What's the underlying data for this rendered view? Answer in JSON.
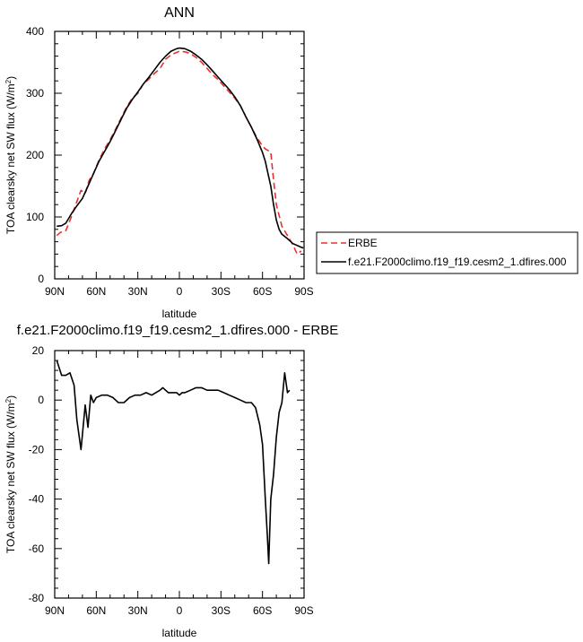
{
  "chart_data": [
    {
      "type": "line",
      "title": "ANN",
      "xlabel": "latitude",
      "ylabel_main": "TOA clearsky net SW flux (W/m",
      "ylabel_sup": "2",
      "ylabel_end": ")",
      "xlim": [
        90,
        -90
      ],
      "ylim": [
        0,
        400
      ],
      "x_ticks": [
        {
          "v": 90,
          "label": "90N"
        },
        {
          "v": 60,
          "label": "60N"
        },
        {
          "v": 30,
          "label": "30N"
        },
        {
          "v": 0,
          "label": "0"
        },
        {
          "v": -30,
          "label": "30S"
        },
        {
          "v": -60,
          "label": "60S"
        },
        {
          "v": -90,
          "label": "90S"
        }
      ],
      "y_ticks": [
        {
          "v": 0,
          "label": "0"
        },
        {
          "v": 100,
          "label": "100"
        },
        {
          "v": 200,
          "label": "200"
        },
        {
          "v": 300,
          "label": "300"
        },
        {
          "v": 400,
          "label": "400"
        }
      ],
      "legend": {
        "placement": "right",
        "entries": [
          "ERBE",
          "f.e21.F2000climo.f19_f19.cesm2_1.dfires.000"
        ]
      },
      "series": [
        {
          "name": "ERBE",
          "color": "#e8302e",
          "dash": true,
          "points": [
            [
              88.5,
              70
            ],
            [
              86,
              75
            ],
            [
              82,
              78
            ],
            [
              78,
              100
            ],
            [
              74,
              125
            ],
            [
              71,
              143
            ],
            [
              68,
              138
            ],
            [
              65,
              160
            ],
            [
              62,
              170
            ],
            [
              58,
              192
            ],
            [
              54,
              210
            ],
            [
              50,
              225
            ],
            [
              46,
              242
            ],
            [
              42,
              260
            ],
            [
              38,
              278
            ],
            [
              34,
              292
            ],
            [
              30,
              300
            ],
            [
              26,
              315
            ],
            [
              22,
              323
            ],
            [
              18,
              332
            ],
            [
              14,
              340
            ],
            [
              10,
              355
            ],
            [
              6,
              362
            ],
            [
              2,
              366
            ],
            [
              0,
              368
            ],
            [
              -4,
              367
            ],
            [
              -8,
              364
            ],
            [
              -12,
              358
            ],
            [
              -16,
              350
            ],
            [
              -20,
              340
            ],
            [
              -24,
              330
            ],
            [
              -28,
              322
            ],
            [
              -32,
              312
            ],
            [
              -36,
              302
            ],
            [
              -40,
              292
            ],
            [
              -44,
              280
            ],
            [
              -48,
              262
            ],
            [
              -52,
              245
            ],
            [
              -56,
              228
            ],
            [
              -60,
              215
            ],
            [
              -62,
              210
            ],
            [
              -66,
              205
            ],
            [
              -68,
              160
            ],
            [
              -70,
              120
            ],
            [
              -74,
              85
            ],
            [
              -78,
              70
            ],
            [
              -82,
              55
            ],
            [
              -85,
              40
            ],
            [
              -88,
              45
            ]
          ]
        },
        {
          "name": "f.e21.F2000climo.f19_f19.cesm2_1.dfires.000",
          "color": "#000000",
          "dash": false,
          "points": [
            [
              88.5,
              85
            ],
            [
              85,
              86
            ],
            [
              82,
              90
            ],
            [
              78,
              105
            ],
            [
              74,
              118
            ],
            [
              70,
              130
            ],
            [
              66,
              150
            ],
            [
              62,
              170
            ],
            [
              58,
              190
            ],
            [
              54,
              206
            ],
            [
              50,
              222
            ],
            [
              46,
              240
            ],
            [
              42,
              258
            ],
            [
              38,
              276
            ],
            [
              34,
              290
            ],
            [
              30,
              302
            ],
            [
              26,
              315
            ],
            [
              22,
              326
            ],
            [
              18,
              338
            ],
            [
              14,
              350
            ],
            [
              10,
              360
            ],
            [
              6,
              368
            ],
            [
              2,
              372
            ],
            [
              0,
              373
            ],
            [
              -4,
              372
            ],
            [
              -8,
              368
            ],
            [
              -12,
              362
            ],
            [
              -16,
              355
            ],
            [
              -20,
              346
            ],
            [
              -24,
              336
            ],
            [
              -28,
              326
            ],
            [
              -32,
              316
            ],
            [
              -36,
              306
            ],
            [
              -40,
              294
            ],
            [
              -44,
              280
            ],
            [
              -48,
              262
            ],
            [
              -52,
              245
            ],
            [
              -56,
              226
            ],
            [
              -58,
              215
            ],
            [
              -60,
              204
            ],
            [
              -62,
              190
            ],
            [
              -64,
              170
            ],
            [
              -66,
              150
            ],
            [
              -68,
              120
            ],
            [
              -70,
              95
            ],
            [
              -72,
              80
            ],
            [
              -74,
              72
            ],
            [
              -78,
              65
            ],
            [
              -82,
              57
            ],
            [
              -86,
              53
            ],
            [
              -88,
              51
            ],
            [
              -89.5,
              50
            ]
          ]
        }
      ]
    },
    {
      "type": "line",
      "title": "f.e21.F2000climo.f19_f19.cesm2_1.dfires.000 - ERBE",
      "xlabel": "latitude",
      "ylabel_main": "TOA clearsky net SW flux (W/m",
      "ylabel_sup": "2",
      "ylabel_end": ")",
      "xlim": [
        90,
        -90
      ],
      "ylim": [
        -80,
        20
      ],
      "x_ticks": [
        {
          "v": 90,
          "label": "90N"
        },
        {
          "v": 60,
          "label": "60N"
        },
        {
          "v": 30,
          "label": "30N"
        },
        {
          "v": 0,
          "label": "0"
        },
        {
          "v": -30,
          "label": "30S"
        },
        {
          "v": -60,
          "label": "60S"
        },
        {
          "v": -90,
          "label": "90S"
        }
      ],
      "y_ticks": [
        {
          "v": -80,
          "label": "-80"
        },
        {
          "v": -60,
          "label": "-60"
        },
        {
          "v": -40,
          "label": "-40"
        },
        {
          "v": -20,
          "label": "-20"
        },
        {
          "v": 0,
          "label": "0"
        },
        {
          "v": 20,
          "label": "20"
        }
      ],
      "series": [
        {
          "color": "#000000",
          "dash": false,
          "points": [
            [
              88.5,
              16
            ],
            [
              85,
              10
            ],
            [
              82,
              10
            ],
            [
              79,
              11
            ],
            [
              76,
              6
            ],
            [
              74,
              -8
            ],
            [
              71,
              -20
            ],
            [
              68,
              -2
            ],
            [
              66,
              -11
            ],
            [
              64,
              2
            ],
            [
              62,
              -1
            ],
            [
              60,
              1
            ],
            [
              56,
              2
            ],
            [
              52,
              2
            ],
            [
              48,
              1
            ],
            [
              44,
              -1
            ],
            [
              40,
              -1
            ],
            [
              36,
              1
            ],
            [
              32,
              2
            ],
            [
              28,
              2
            ],
            [
              24,
              3
            ],
            [
              20,
              2
            ],
            [
              17,
              3
            ],
            [
              14,
              4
            ],
            [
              12,
              5
            ],
            [
              10,
              4
            ],
            [
              8,
              3
            ],
            [
              6,
              3
            ],
            [
              4,
              3
            ],
            [
              2,
              3
            ],
            [
              0,
              2
            ],
            [
              -2,
              3
            ],
            [
              -4,
              3
            ],
            [
              -8,
              4
            ],
            [
              -12,
              5
            ],
            [
              -16,
              5
            ],
            [
              -20,
              4
            ],
            [
              -24,
              4
            ],
            [
              -28,
              4
            ],
            [
              -32,
              3
            ],
            [
              -36,
              2
            ],
            [
              -40,
              1
            ],
            [
              -44,
              0
            ],
            [
              -48,
              -1
            ],
            [
              -52,
              -1
            ],
            [
              -55,
              -3
            ],
            [
              -58,
              -10
            ],
            [
              -60,
              -18
            ],
            [
              -62,
              -40
            ],
            [
              -63.5,
              -55
            ],
            [
              -64.5,
              -66
            ],
            [
              -66,
              -40
            ],
            [
              -68,
              -30
            ],
            [
              -70,
              -15
            ],
            [
              -72,
              -5
            ],
            [
              -74,
              -1
            ],
            [
              -76,
              11
            ],
            [
              -78,
              3
            ],
            [
              -79.5,
              4
            ]
          ]
        }
      ]
    }
  ]
}
